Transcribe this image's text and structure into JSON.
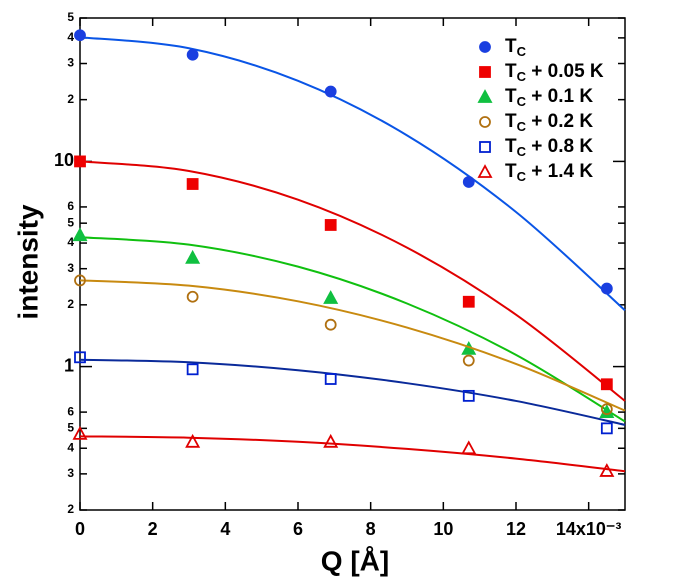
{
  "chart_data": {
    "type": "scatter",
    "xlabel": "Q [Å]",
    "ylabel": "intensity",
    "log_y": true,
    "legend": "upper right",
    "x": [
      0,
      0.0031,
      0.0069,
      0.0107,
      0.0145
    ],
    "fit_x": [
      0,
      0.003,
      0.006,
      0.009,
      0.012,
      0.015
    ],
    "xlim": [
      0,
      0.015
    ],
    "xticks": [
      {
        "value": 0,
        "label": "0"
      },
      {
        "value": 0.002,
        "label": "2"
      },
      {
        "value": 0.004,
        "label": "4"
      },
      {
        "value": 0.006,
        "label": "6"
      },
      {
        "value": 0.008,
        "label": "8"
      },
      {
        "value": 0.01,
        "label": "10"
      },
      {
        "value": 0.012,
        "label": "12"
      },
      {
        "value": 0.014,
        "label": "14x10⁻³"
      }
    ],
    "ylim": [
      0.2,
      50
    ],
    "yticks": [
      {
        "value": 0.2,
        "label": "2"
      },
      {
        "value": 0.3,
        "label": "3"
      },
      {
        "value": 0.4,
        "label": "4"
      },
      {
        "value": 0.5,
        "label": "5"
      },
      {
        "value": 0.6,
        "label": "6"
      },
      1,
      2,
      3,
      4,
      5,
      6,
      10,
      {
        "value": 20,
        "label": "2"
      },
      {
        "value": 30,
        "label": "3"
      },
      {
        "value": 40,
        "label": "4"
      },
      {
        "value": 50,
        "label": "5"
      }
    ],
    "series": [
      {
        "name": "TC",
        "color": "#1a3fe0",
        "line_color": "#0a55e6",
        "marker": "circle",
        "filled": true,
        "values": [
          41.2,
          33.1,
          21.9,
          7.94,
          2.4
        ],
        "fit_values": [
          40.3,
          35.6,
          24.7,
          13.4,
          5.67,
          1.88
        ]
      },
      {
        "name": "TC + 0.05 K",
        "color": "#ee0000",
        "line_color": "#e00000",
        "marker": "square",
        "filled": true,
        "values": [
          10,
          7.76,
          4.9,
          2.07,
          0.82
        ],
        "fit_values": [
          10,
          8.98,
          6.51,
          3.8,
          1.79,
          0.68
        ]
      },
      {
        "name": "TC + 0.1 K",
        "color": "#10c040",
        "line_color": "#10c010",
        "marker": "triangle",
        "filled": true,
        "values": [
          4.37,
          3.39,
          2.16,
          1.22,
          0.6
        ],
        "fit_values": [
          4.27,
          3.93,
          3.07,
          2.03,
          1.14,
          0.54
        ]
      },
      {
        "name": "TC + 0.2 K",
        "color": "#b07010",
        "line_color": "#c88a10",
        "marker": "circle",
        "filled": false,
        "values": [
          2.63,
          2.19,
          1.6,
          1.07,
          0.62
        ],
        "fit_values": [
          2.63,
          2.48,
          2.08,
          1.55,
          1.03,
          0.61
        ]
      },
      {
        "name": "TC + 0.8 K",
        "color": "#0020d0",
        "line_color": "#0a2a9a",
        "marker": "square",
        "filled": false,
        "values": [
          1.11,
          0.97,
          0.87,
          0.72,
          0.5
        ],
        "fit_values": [
          1.08,
          1.05,
          0.96,
          0.83,
          0.68,
          0.52
        ]
      },
      {
        "name": "TC + 1.4 K",
        "color": "#e00000",
        "line_color": "#e00000",
        "marker": "triangle",
        "filled": false,
        "values": [
          0.47,
          0.43,
          0.43,
          0.4,
          0.31
        ],
        "fit_values": [
          0.457,
          0.45,
          0.43,
          0.397,
          0.356,
          0.309
        ]
      }
    ]
  }
}
